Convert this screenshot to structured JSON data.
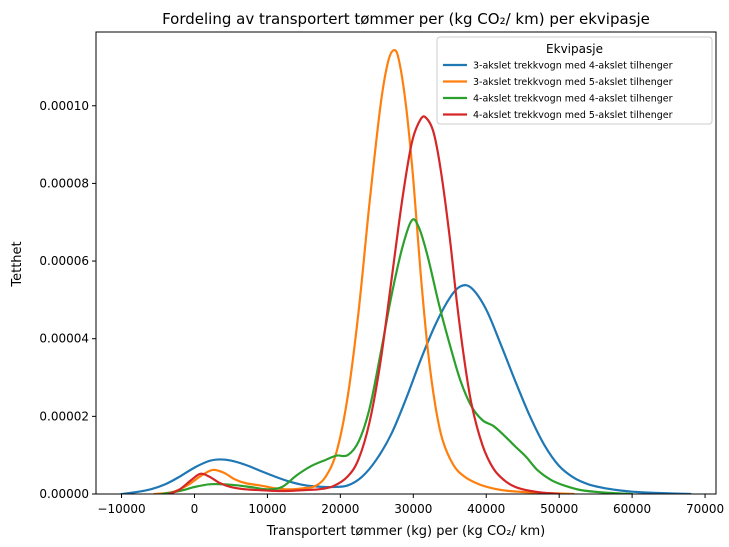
{
  "chart_data": {
    "type": "line",
    "title": "Fordeling av transportert tømmer per (kg CO₂/ km) per ekvipasje",
    "xlabel": "Transportert tømmer (kg) per (kg CO₂/ km)",
    "ylabel": "Tetthet",
    "xlim": [
      -13500,
      71500
    ],
    "ylim": [
      0,
      0.000119
    ],
    "xticks": [
      -10000,
      0,
      10000,
      20000,
      30000,
      40000,
      50000,
      60000,
      70000
    ],
    "xtick_labels": [
      "−10000",
      "0",
      "10000",
      "20000",
      "30000",
      "40000",
      "50000",
      "60000",
      "70000"
    ],
    "yticks": [
      0,
      2e-05,
      4e-05,
      6e-05,
      8e-05,
      0.0001
    ],
    "ytick_labels": [
      "0.00000",
      "0.00002",
      "0.00004",
      "0.00006",
      "0.00008",
      "0.00010"
    ],
    "legend": {
      "title": "Ekvipasje",
      "placement": "top-right"
    },
    "series": [
      {
        "name": "3-akslet trekkvogn med 4-akslet tilhenger",
        "color": "#1f77b4",
        "points": [
          [
            -10000,
            0
          ],
          [
            -8000,
            5e-07
          ],
          [
            -6000,
            1.2e-06
          ],
          [
            -4000,
            2.5e-06
          ],
          [
            -2000,
            4.5e-06
          ],
          [
            0,
            6.8e-06
          ],
          [
            2000,
            8.5e-06
          ],
          [
            3500,
            8.9e-06
          ],
          [
            5000,
            8.6e-06
          ],
          [
            7000,
            7.5e-06
          ],
          [
            9000,
            6e-06
          ],
          [
            11000,
            4.5e-06
          ],
          [
            13000,
            3.2e-06
          ],
          [
            15000,
            2.3e-06
          ],
          [
            17000,
            1.9e-06
          ],
          [
            19000,
            1.8e-06
          ],
          [
            21000,
            2.2e-06
          ],
          [
            23000,
            4.5e-06
          ],
          [
            25000,
            9e-06
          ],
          [
            27000,
            1.55e-05
          ],
          [
            29000,
            2.45e-05
          ],
          [
            31000,
            3.45e-05
          ],
          [
            33000,
            4.35e-05
          ],
          [
            35000,
            5.05e-05
          ],
          [
            36500,
            5.35e-05
          ],
          [
            38000,
            5.3e-05
          ],
          [
            40000,
            4.75e-05
          ],
          [
            42000,
            3.85e-05
          ],
          [
            44000,
            2.9e-05
          ],
          [
            46000,
            2e-05
          ],
          [
            48000,
            1.25e-05
          ],
          [
            50000,
            7.2e-06
          ],
          [
            52000,
            4.2e-06
          ],
          [
            54000,
            2.5e-06
          ],
          [
            56000,
            1.6e-06
          ],
          [
            58000,
            1e-06
          ],
          [
            60000,
            6e-07
          ],
          [
            63000,
            3e-07
          ],
          [
            66000,
            1e-07
          ],
          [
            68000,
            0
          ]
        ]
      },
      {
        "name": "3-akslet trekkvogn med 5-akslet tilhenger",
        "color": "#ff7f0e",
        "points": [
          [
            -5500,
            0
          ],
          [
            -3000,
            5e-07
          ],
          [
            -1000,
            2.2e-06
          ],
          [
            1000,
            4.8e-06
          ],
          [
            2500,
            6.2e-06
          ],
          [
            4000,
            5.5e-06
          ],
          [
            5500,
            3.8e-06
          ],
          [
            7000,
            2.8e-06
          ],
          [
            9000,
            2.2e-06
          ],
          [
            11000,
            1.5e-06
          ],
          [
            13000,
            1.2e-06
          ],
          [
            15000,
            1.5e-06
          ],
          [
            16500,
            2e-06
          ],
          [
            18000,
            4.5e-06
          ],
          [
            19500,
            1.1e-05
          ],
          [
            21000,
            2.5e-05
          ],
          [
            22500,
            4.7e-05
          ],
          [
            24000,
            7.5e-05
          ],
          [
            25500,
            0.0001
          ],
          [
            26500,
            0.000111
          ],
          [
            27300,
            0.0001143
          ],
          [
            28000,
            0.000112
          ],
          [
            29000,
            0.0001
          ],
          [
            30000,
            8.1e-05
          ],
          [
            31000,
            5.7e-05
          ],
          [
            32000,
            3.7e-05
          ],
          [
            33000,
            2.3e-05
          ],
          [
            34000,
            1.4e-05
          ],
          [
            35500,
            7.5e-06
          ],
          [
            37000,
            4.5e-06
          ],
          [
            39000,
            2.5e-06
          ],
          [
            41000,
            1.4e-06
          ],
          [
            43000,
            8e-07
          ],
          [
            46000,
            4e-07
          ],
          [
            49000,
            2e-07
          ],
          [
            52000,
            0
          ]
        ]
      },
      {
        "name": "4-akslet trekkvogn med 4-akslet tilhenger",
        "color": "#2ca02c",
        "points": [
          [
            -4500,
            0
          ],
          [
            -2000,
            8e-07
          ],
          [
            0,
            1.8e-06
          ],
          [
            2000,
            2.5e-06
          ],
          [
            4000,
            2.5e-06
          ],
          [
            6000,
            2.2e-06
          ],
          [
            8000,
            1.7e-06
          ],
          [
            10000,
            1.2e-06
          ],
          [
            12000,
            1.8e-06
          ],
          [
            14000,
            4.8e-06
          ],
          [
            16000,
            7.2e-06
          ],
          [
            18000,
            8.8e-06
          ],
          [
            19500,
            9.9e-06
          ],
          [
            21000,
            1e-05
          ],
          [
            22500,
            1.35e-05
          ],
          [
            24000,
            2.2e-05
          ],
          [
            25500,
            3.6e-05
          ],
          [
            27000,
            5.1e-05
          ],
          [
            28500,
            6.35e-05
          ],
          [
            29800,
            7.05e-05
          ],
          [
            30800,
            6.85e-05
          ],
          [
            32000,
            6.1e-05
          ],
          [
            33500,
            4.9e-05
          ],
          [
            35000,
            3.85e-05
          ],
          [
            36500,
            2.9e-05
          ],
          [
            38000,
            2.25e-05
          ],
          [
            39500,
            1.9e-05
          ],
          [
            41000,
            1.75e-05
          ],
          [
            42500,
            1.5e-05
          ],
          [
            44000,
            1.22e-05
          ],
          [
            45500,
            9.5e-06
          ],
          [
            47000,
            6.2e-06
          ],
          [
            49000,
            3.5e-06
          ],
          [
            51000,
            2e-06
          ],
          [
            53000,
            1e-06
          ],
          [
            56000,
            4e-07
          ],
          [
            60000,
            0
          ]
        ]
      },
      {
        "name": "4-akslet trekkvogn med 5-akslet tilhenger",
        "color": "#d62728",
        "points": [
          [
            -3500,
            0
          ],
          [
            -2000,
            1.2e-06
          ],
          [
            -500,
            3.5e-06
          ],
          [
            800,
            5.2e-06
          ],
          [
            2000,
            4.5e-06
          ],
          [
            3500,
            2.8e-06
          ],
          [
            5000,
            1.8e-06
          ],
          [
            7000,
            1.2e-06
          ],
          [
            9000,
            1e-06
          ],
          [
            11000,
            8e-07
          ],
          [
            13000,
            8e-07
          ],
          [
            15000,
            1e-06
          ],
          [
            17000,
            1.2e-06
          ],
          [
            19000,
            2e-06
          ],
          [
            21000,
            4.5e-06
          ],
          [
            22500,
            9e-06
          ],
          [
            24000,
            1.85e-05
          ],
          [
            25500,
            3.4e-05
          ],
          [
            27000,
            5.5e-05
          ],
          [
            28500,
            7.6e-05
          ],
          [
            29800,
            9.05e-05
          ],
          [
            31000,
            9.65e-05
          ],
          [
            31800,
            9.68e-05
          ],
          [
            32800,
            9.3e-05
          ],
          [
            33800,
            8.3e-05
          ],
          [
            35000,
            6.6e-05
          ],
          [
            36000,
            4.9e-05
          ],
          [
            37000,
            3.45e-05
          ],
          [
            38000,
            2.3e-05
          ],
          [
            39500,
            1.25e-05
          ],
          [
            41000,
            6.5e-06
          ],
          [
            42500,
            3.5e-06
          ],
          [
            44000,
            1.8e-06
          ],
          [
            46000,
            8e-07
          ],
          [
            48000,
            3e-07
          ],
          [
            50000,
            0
          ]
        ]
      }
    ]
  }
}
